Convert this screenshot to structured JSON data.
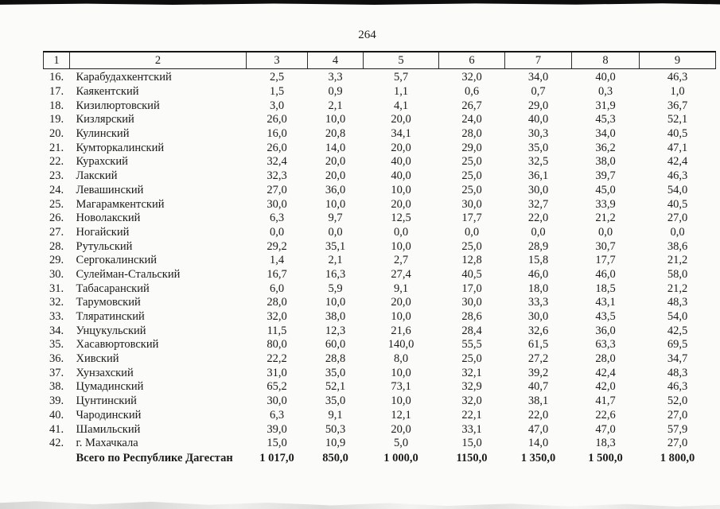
{
  "page": {
    "number": "264"
  },
  "table": {
    "header": [
      "1",
      "2",
      "3",
      "4",
      "5",
      "6",
      "7",
      "8",
      "9"
    ],
    "rows": [
      {
        "num": "16.",
        "name": "Карабудахкентский",
        "values": [
          "2,5",
          "3,3",
          "5,7",
          "32,0",
          "34,0",
          "40,0",
          "46,3"
        ]
      },
      {
        "num": "17.",
        "name": "Каякентский",
        "values": [
          "1,5",
          "0,9",
          "1,1",
          "0,6",
          "0,7",
          "0,3",
          "1,0"
        ]
      },
      {
        "num": "18.",
        "name": "Кизилюртовский",
        "values": [
          "3,0",
          "2,1",
          "4,1",
          "26,7",
          "29,0",
          "31,9",
          "36,7"
        ]
      },
      {
        "num": "19.",
        "name": "Кизлярский",
        "values": [
          "26,0",
          "10,0",
          "20,0",
          "24,0",
          "40,0",
          "45,3",
          "52,1"
        ]
      },
      {
        "num": "20.",
        "name": "Кулинский",
        "values": [
          "16,0",
          "20,8",
          "34,1",
          "28,0",
          "30,3",
          "34,0",
          "40,5"
        ]
      },
      {
        "num": "21.",
        "name": "Кумторкалинский",
        "values": [
          "26,0",
          "14,0",
          "20,0",
          "29,0",
          "35,0",
          "36,2",
          "47,1"
        ]
      },
      {
        "num": "22.",
        "name": "Курахский",
        "values": [
          "32,4",
          "20,0",
          "40,0",
          "25,0",
          "32,5",
          "38,0",
          "42,4"
        ]
      },
      {
        "num": "23.",
        "name": "Лакский",
        "values": [
          "32,3",
          "20,0",
          "40,0",
          "25,0",
          "36,1",
          "39,7",
          "46,3"
        ]
      },
      {
        "num": "24.",
        "name": "Левашинский",
        "values": [
          "27,0",
          "36,0",
          "10,0",
          "25,0",
          "30,0",
          "45,0",
          "54,0"
        ]
      },
      {
        "num": "25.",
        "name": "Магарамкентский",
        "values": [
          "30,0",
          "10,0",
          "20,0",
          "30,0",
          "32,7",
          "33,9",
          "40,5"
        ]
      },
      {
        "num": "26.",
        "name": "Новолакский",
        "values": [
          "6,3",
          "9,7",
          "12,5",
          "17,7",
          "22,0",
          "21,2",
          "27,0"
        ]
      },
      {
        "num": "27.",
        "name": "Ногайский",
        "values": [
          "0,0",
          "0,0",
          "0,0",
          "0,0",
          "0,0",
          "0,0",
          "0,0"
        ]
      },
      {
        "num": "28.",
        "name": "Рутульский",
        "values": [
          "29,2",
          "35,1",
          "10,0",
          "25,0",
          "28,9",
          "30,7",
          "38,6"
        ]
      },
      {
        "num": "29.",
        "name": "Сергокалинский",
        "values": [
          "1,4",
          "2,1",
          "2,7",
          "12,8",
          "15,8",
          "17,7",
          "21,2"
        ]
      },
      {
        "num": "30.",
        "name": "Сулейман-Стальский",
        "values": [
          "16,7",
          "16,3",
          "27,4",
          "40,5",
          "46,0",
          "46,0",
          "58,0"
        ]
      },
      {
        "num": "31.",
        "name": "Табасаранский",
        "values": [
          "6,0",
          "5,9",
          "9,1",
          "17,0",
          "18,0",
          "18,5",
          "21,2"
        ]
      },
      {
        "num": "32.",
        "name": "Тарумовский",
        "values": [
          "28,0",
          "10,0",
          "20,0",
          "30,0",
          "33,3",
          "43,1",
          "48,3"
        ]
      },
      {
        "num": "33.",
        "name": "Тляратинский",
        "values": [
          "32,0",
          "38,0",
          "10,0",
          "28,6",
          "30,0",
          "43,5",
          "54,0"
        ]
      },
      {
        "num": "34.",
        "name": "Унцукульский",
        "values": [
          "11,5",
          "12,3",
          "21,6",
          "28,4",
          "32,6",
          "36,0",
          "42,5"
        ]
      },
      {
        "num": "35.",
        "name": "Хасавюртовский",
        "values": [
          "80,0",
          "60,0",
          "140,0",
          "55,5",
          "61,5",
          "63,3",
          "69,5"
        ]
      },
      {
        "num": "36.",
        "name": "Хивский",
        "values": [
          "22,2",
          "28,8",
          "8,0",
          "25,0",
          "27,2",
          "28,0",
          "34,7"
        ]
      },
      {
        "num": "37.",
        "name": "Хунзахский",
        "values": [
          "31,0",
          "35,0",
          "10,0",
          "32,1",
          "39,2",
          "42,4",
          "48,3"
        ]
      },
      {
        "num": "38.",
        "name": "Цумадинский",
        "values": [
          "65,2",
          "52,1",
          "73,1",
          "32,9",
          "40,7",
          "42,0",
          "46,3"
        ]
      },
      {
        "num": "39.",
        "name": "Цунтинский",
        "values": [
          "30,0",
          "35,0",
          "10,0",
          "32,0",
          "38,1",
          "41,7",
          "52,0"
        ]
      },
      {
        "num": "40.",
        "name": "Чародинский",
        "values": [
          "6,3",
          "9,1",
          "12,1",
          "22,1",
          "22,0",
          "22,6",
          "27,0"
        ]
      },
      {
        "num": "41.",
        "name": "Шамильский",
        "values": [
          "39,0",
          "50,3",
          "20,0",
          "33,1",
          "47,0",
          "47,0",
          "57,9"
        ]
      },
      {
        "num": "42.",
        "name": "г. Махачкала",
        "values": [
          "15,0",
          "10,9",
          "5,0",
          "15,0",
          "14,0",
          "18,3",
          "27,0"
        ]
      }
    ],
    "total": {
      "label": "Всего по Республике Дагестан",
      "values": [
        "1 017,0",
        "850,0",
        "1 000,0",
        "1150,0",
        "1 350,0",
        "1 500,0",
        "1 800,0"
      ]
    }
  }
}
